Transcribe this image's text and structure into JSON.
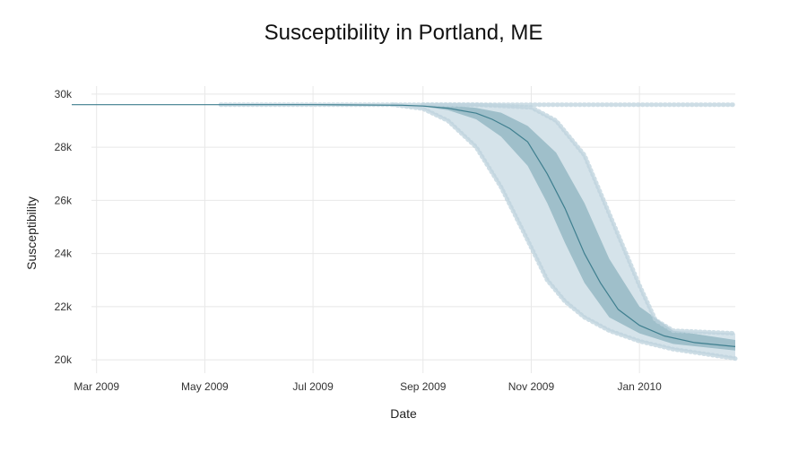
{
  "chart_data": {
    "type": "line",
    "title": "Susceptibility in Portland, ME",
    "xlabel": "Date",
    "ylabel": "Susceptibility",
    "xlim": [
      "2009-02-15",
      "2010-02-24"
    ],
    "ylim": [
      19500,
      30300
    ],
    "x_ticks": [
      {
        "date": "2009-03-01",
        "label": "Mar 2009"
      },
      {
        "date": "2009-05-01",
        "label": "May 2009"
      },
      {
        "date": "2009-07-01",
        "label": "Jul 2009"
      },
      {
        "date": "2009-09-01",
        "label": "Sep 2009"
      },
      {
        "date": "2009-11-01",
        "label": "Nov 2009"
      },
      {
        "date": "2010-01-01",
        "label": "Jan 2010"
      }
    ],
    "y_ticks": [
      {
        "value": 20000,
        "label": "20k"
      },
      {
        "value": 22000,
        "label": "22k"
      },
      {
        "value": 24000,
        "label": "24k"
      },
      {
        "value": 26000,
        "label": "26k"
      },
      {
        "value": 28000,
        "label": "28k"
      },
      {
        "value": 30000,
        "label": "30k"
      }
    ],
    "grid": true,
    "legend": "none",
    "colors": {
      "median_line": "#3f7f8f",
      "inner_band": "#9fbfca",
      "outer_band": "#d5e3ea",
      "points": "#bcd2dc"
    },
    "series": [
      {
        "role": "median",
        "x": [
          "2009-02-15",
          "2009-05-10",
          "2009-07-01",
          "2009-08-20",
          "2009-09-01",
          "2009-09-15",
          "2009-10-01",
          "2009-10-10",
          "2009-10-20",
          "2009-10-30",
          "2009-11-10",
          "2009-11-20",
          "2009-12-01",
          "2009-12-10",
          "2009-12-20",
          "2010-01-01",
          "2010-01-15",
          "2010-02-01",
          "2010-02-24"
        ],
        "y": [
          29600,
          29600,
          29600,
          29580,
          29550,
          29470,
          29280,
          29050,
          28700,
          28200,
          27000,
          25700,
          24000,
          22900,
          21900,
          21300,
          20900,
          20650,
          20500
        ]
      },
      {
        "role": "inner-band-upper",
        "x": [
          "2009-09-01",
          "2009-09-20",
          "2009-10-01",
          "2009-10-15",
          "2009-10-30",
          "2009-11-15",
          "2009-12-01",
          "2009-12-15",
          "2010-01-01",
          "2010-01-20",
          "2010-02-24"
        ],
        "y": [
          29580,
          29550,
          29480,
          29300,
          28800,
          27800,
          25900,
          23800,
          22000,
          21100,
          20750
        ]
      },
      {
        "role": "inner-band-lower",
        "x": [
          "2009-09-01",
          "2009-09-15",
          "2009-10-01",
          "2009-10-15",
          "2009-10-30",
          "2009-11-10",
          "2009-11-20",
          "2009-12-01",
          "2009-12-15",
          "2010-01-01",
          "2010-01-20",
          "2010-02-24"
        ],
        "y": [
          29530,
          29400,
          29050,
          28400,
          27300,
          25900,
          24400,
          22900,
          21600,
          21000,
          20600,
          20350
        ]
      },
      {
        "role": "outer-band-upper",
        "x": [
          "2009-09-01",
          "2009-10-01",
          "2009-11-01",
          "2009-11-15",
          "2009-12-01",
          "2009-12-15",
          "2010-01-01",
          "2010-01-10",
          "2010-01-20",
          "2010-02-24"
        ],
        "y": [
          29600,
          29600,
          29500,
          29000,
          27700,
          25500,
          22800,
          21500,
          21100,
          21000
        ]
      },
      {
        "role": "outer-band-lower",
        "x": [
          "2009-08-15",
          "2009-09-01",
          "2009-09-15",
          "2009-10-01",
          "2009-10-15",
          "2009-10-30",
          "2009-11-10",
          "2009-11-20",
          "2009-12-01",
          "2009-12-15",
          "2010-01-01",
          "2010-01-20",
          "2010-02-24"
        ],
        "y": [
          29600,
          29450,
          29000,
          28000,
          26500,
          24500,
          23000,
          22200,
          21600,
          21100,
          20700,
          20400,
          20050
        ]
      },
      {
        "role": "flat-upper-trajectories",
        "x": [
          "2009-05-10",
          "2010-02-24"
        ],
        "y": [
          29600,
          29600
        ]
      }
    ]
  }
}
